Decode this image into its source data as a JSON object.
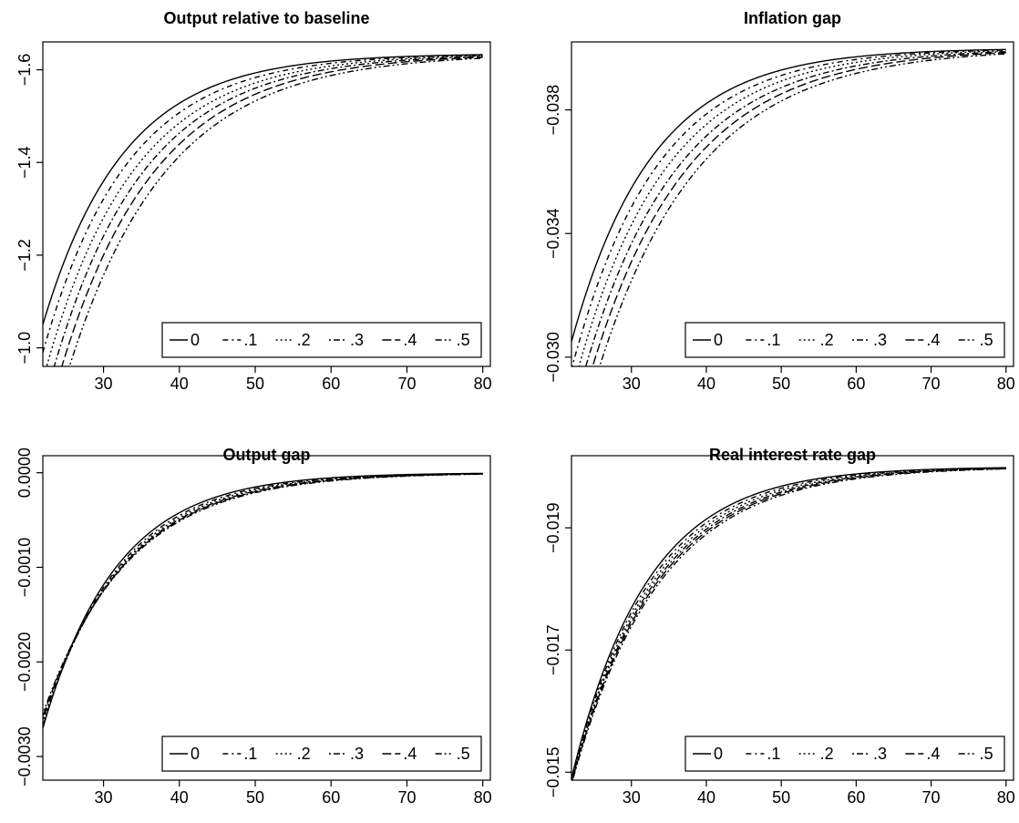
{
  "chart_data": [
    {
      "type": "line",
      "title": "Output relative to baseline",
      "xlabel": "",
      "ylabel": "",
      "xlim": [
        22,
        81
      ],
      "ylim": [
        -0.96,
        -1.66
      ],
      "x_ticks": [
        30,
        40,
        50,
        60,
        70,
        80
      ],
      "x_tick_labels": [
        "30",
        "40",
        "50",
        "60",
        "70",
        "80"
      ],
      "y_ticks": [
        -1.0,
        -1.2,
        -1.4,
        -1.6
      ],
      "y_tick_labels": [
        "-1.0",
        "-1.2",
        "-1.4",
        "-1.6"
      ],
      "legend": {
        "position": "bottom-right",
        "labels": [
          "0",
          ".1",
          ".2",
          ".3",
          ".4",
          ".5"
        ]
      },
      "curve_model": {
        "x_start": 22,
        "x_end": 80,
        "steady_state": -1.635,
        "start_values": [
          -1.05,
          -0.99,
          -0.93,
          -0.87,
          -0.81,
          -0.75
        ],
        "decay_rates": [
          0.0942,
          0.09,
          0.086,
          0.083,
          0.08,
          0.077
        ]
      },
      "series": [
        {
          "name": "0",
          "dash": "solid"
        },
        {
          "name": ".1",
          "dash": "dash-dot"
        },
        {
          "name": ".2",
          "dash": "dotted"
        },
        {
          "name": ".3",
          "dash": "dot-dash"
        },
        {
          "name": ".4",
          "dash": "long-dash"
        },
        {
          "name": ".5",
          "dash": "dash-dot-dot"
        }
      ]
    },
    {
      "type": "line",
      "title": "Inflation gap",
      "xlabel": "",
      "ylabel": "",
      "xlim": [
        22,
        81
      ],
      "ylim": [
        -0.0297,
        -0.0402
      ],
      "x_ticks": [
        30,
        40,
        50,
        60,
        70,
        80
      ],
      "x_tick_labels": [
        "30",
        "40",
        "50",
        "60",
        "70",
        "80"
      ],
      "y_ticks": [
        -0.03,
        -0.034,
        -0.038
      ],
      "y_tick_labels": [
        "-0.030",
        "-0.034",
        "-0.038"
      ],
      "legend": {
        "position": "bottom-right",
        "labels": [
          "0",
          ".1",
          ".2",
          ".3",
          ".4",
          ".5"
        ]
      },
      "curve_model": {
        "x_start": 22,
        "x_end": 80,
        "steady_state": -0.04,
        "start_values": [
          -0.0305,
          -0.0296,
          -0.0288,
          -0.028,
          -0.0272,
          -0.0264
        ],
        "decay_rates": [
          0.0926,
          0.088,
          0.084,
          0.08,
          0.077,
          0.074
        ]
      },
      "series": [
        {
          "name": "0",
          "dash": "solid"
        },
        {
          "name": ".1",
          "dash": "dash-dot"
        },
        {
          "name": ".2",
          "dash": "dotted"
        },
        {
          "name": ".3",
          "dash": "dot-dash"
        },
        {
          "name": ".4",
          "dash": "long-dash"
        },
        {
          "name": ".5",
          "dash": "dash-dot-dot"
        }
      ]
    },
    {
      "type": "line",
      "title": "Output gap",
      "xlabel": "",
      "ylabel": "",
      "xlim": [
        22,
        81
      ],
      "ylim": [
        -0.00325,
        0.00018
      ],
      "x_ticks": [
        30,
        40,
        50,
        60,
        70,
        80
      ],
      "x_tick_labels": [
        "30",
        "40",
        "50",
        "60",
        "70",
        "80"
      ],
      "y_ticks": [
        -0.003,
        -0.002,
        -0.001,
        0.0
      ],
      "y_tick_labels": [
        "-0.0030",
        "-0.0020",
        "-0.0010",
        "0.0000"
      ],
      "legend": {
        "position": "bottom-right",
        "labels": [
          "0",
          ".1",
          ".2",
          ".3",
          ".4",
          ".5"
        ]
      },
      "curve_model": {
        "x_start": 22,
        "x_end": 80,
        "steady_state": 0.0,
        "start_values": [
          -0.0027,
          -0.00268,
          -0.00266,
          -0.00262,
          -0.00258,
          -0.00255
        ],
        "decay_rates": [
          0.103,
          0.099,
          0.096,
          0.093,
          0.091,
          0.089
        ]
      },
      "series": [
        {
          "name": "0",
          "dash": "solid"
        },
        {
          "name": ".1",
          "dash": "dash-dot"
        },
        {
          "name": ".2",
          "dash": "dotted"
        },
        {
          "name": ".3",
          "dash": "dot-dash"
        },
        {
          "name": ".4",
          "dash": "long-dash"
        },
        {
          "name": ".5",
          "dash": "dash-dot-dot"
        }
      ]
    },
    {
      "type": "line",
      "title": "Real interest rate gap",
      "xlabel": "",
      "ylabel": "",
      "xlim": [
        22,
        81
      ],
      "ylim": [
        -0.01487,
        -0.02018
      ],
      "x_ticks": [
        30,
        40,
        50,
        60,
        70,
        80
      ],
      "x_tick_labels": [
        "30",
        "40",
        "50",
        "60",
        "70",
        "80"
      ],
      "y_ticks": [
        -0.015,
        -0.017,
        -0.019
      ],
      "y_tick_labels": [
        "-0.015",
        "-0.017",
        "-0.019"
      ],
      "legend": {
        "position": "bottom-right",
        "labels": [
          "0",
          ".1",
          ".2",
          ".3",
          ".4",
          ".5"
        ]
      },
      "curve_model": {
        "x_start": 22,
        "x_end": 80,
        "steady_state": -0.02,
        "start_values": [
          -0.0149,
          -0.01488,
          -0.01486,
          -0.01484,
          -0.01482,
          -0.0148
        ],
        "decay_rates": [
          0.099,
          0.0955,
          0.0925,
          0.09,
          0.088,
          0.086
        ]
      },
      "series": [
        {
          "name": "0",
          "dash": "solid"
        },
        {
          "name": ".1",
          "dash": "dash-dot"
        },
        {
          "name": ".2",
          "dash": "dotted"
        },
        {
          "name": ".3",
          "dash": "dot-dash"
        },
        {
          "name": ".4",
          "dash": "long-dash"
        },
        {
          "name": ".5",
          "dash": "dash-dot-dot"
        }
      ]
    }
  ]
}
